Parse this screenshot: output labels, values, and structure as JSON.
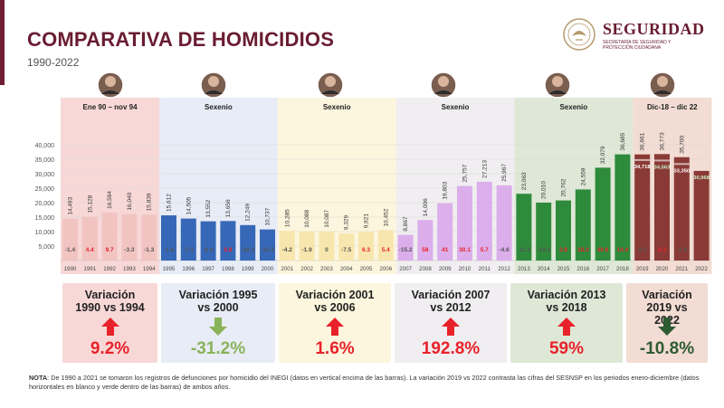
{
  "title": "COMPARATIVA DE HOMICIDIOS",
  "subtitle": "1990-2022",
  "logo": {
    "name": "SEGURIDAD",
    "sub": "SECRETARÍA DE SEGURIDAD Y PROTECCIÓN CIUDADANA"
  },
  "colors": {
    "brand": "#691c32",
    "up": "#e8222a",
    "down_light": "#8ab35a",
    "down_dark": "#2e5b32"
  },
  "periods": [
    {
      "label": "Ene 90 – nov 94",
      "bg": "#f8d8d7",
      "bar": "#f1c4c2"
    },
    {
      "label": "Sexenio",
      "bg": "#e7ecf6",
      "bar": "#3668b7"
    },
    {
      "label": "Sexenio",
      "bg": "#fdf6de",
      "bar": "#f7e6ad"
    },
    {
      "label": "Sexenio",
      "bg": "#f0eef0",
      "bar": "#dcaeeb"
    },
    {
      "label": "Sexenio",
      "bg": "#dfe8d7",
      "bar": "#2e8b3c"
    },
    {
      "label": "Dic-18 – dic 22",
      "bg": "#f2dcd3",
      "bar": "#8a3a36"
    }
  ],
  "chart_data": {
    "type": "bar",
    "title": "Comparativa de homicidios 1990-2022",
    "ylim": [
      0,
      40000
    ],
    "yticks": [
      "40,000",
      "35,000",
      "30,000",
      "25,000",
      "20,000",
      "15,000",
      "10,000",
      "5,000"
    ],
    "categories": [
      "1990",
      "1991",
      "1992",
      "1993",
      "1994",
      "1995",
      "1996",
      "1997",
      "1998",
      "1999",
      "2000",
      "2001",
      "2002",
      "2003",
      "2004",
      "2005",
      "2006",
      "2007",
      "2008",
      "2009",
      "2010",
      "2011",
      "2012",
      "2013",
      "2014",
      "2015",
      "2016",
      "2017",
      "2018",
      "2019",
      "2020",
      "2021",
      "2022"
    ],
    "values": [
      14493,
      15128,
      16594,
      16040,
      15839,
      15612,
      14505,
      13552,
      13656,
      12249,
      10737,
      10285,
      10088,
      10087,
      9329,
      9921,
      10452,
      8867,
      14006,
      19803,
      25757,
      27213,
      25967,
      23063,
      20010,
      20762,
      24559,
      32079,
      36685,
      36661,
      36773,
      35700,
      null
    ],
    "value_labels": [
      "14,493",
      "15,128",
      "16,594",
      "16,040",
      "15,839",
      "15,612",
      "14,505",
      "13,552",
      "13,656",
      "12,249",
      "10,737",
      "10,285",
      "10,088",
      "10,087",
      "9,329",
      "9,921",
      "10,452",
      "8,867",
      "14,006",
      "19,803",
      "25,757",
      "27,213",
      "25,967",
      "23,063",
      "20,010",
      "20,762",
      "24,559",
      "32,079",
      "36,685",
      "36,661",
      "36,773",
      "35,700",
      ""
    ],
    "period_index": [
      0,
      0,
      0,
      0,
      0,
      1,
      1,
      1,
      1,
      1,
      1,
      2,
      2,
      2,
      2,
      2,
      2,
      3,
      3,
      3,
      3,
      3,
      3,
      4,
      4,
      4,
      4,
      4,
      4,
      5,
      5,
      5,
      5
    ],
    "changes": [
      "-1.4",
      "4.4",
      "9.7",
      "-3.3",
      "-1.3",
      "-1.4",
      "-7.1",
      "-6.6",
      "0.8",
      "-10.3",
      "-12.3",
      "-4.2",
      "-1.9",
      "0",
      "-7.5",
      "6.3",
      "5.4",
      "-15.2",
      "58",
      "41",
      "30.1",
      "5.7",
      "-4.6",
      "-11.2",
      "-13.2",
      "3.8",
      "18.3",
      "30.6",
      "14.4",
      "-0.1",
      "0.3",
      "-2.9",
      ""
    ],
    "sesnsp": {
      "categories": [
        "2019",
        "2020",
        "2021",
        "2022"
      ],
      "values": [
        34718,
        34563,
        33350,
        30968
      ],
      "labels": [
        "34,718",
        "34,563",
        "33,350",
        "30,968"
      ]
    }
  },
  "variations": [
    {
      "label": "Variación 1990 vs 1994",
      "value": "9.2%",
      "direction": "up"
    },
    {
      "label": "Variación 1995 vs 2000",
      "value": "-31.2%",
      "direction": "down_light"
    },
    {
      "label": "Variación 2001 vs 2006",
      "value": "1.6%",
      "direction": "up"
    },
    {
      "label": "Variación 2007 vs 2012",
      "value": "192.8%",
      "direction": "up"
    },
    {
      "label": "Variación 2013 vs 2018",
      "value": "59%",
      "direction": "up"
    },
    {
      "label": "Variación 2019 vs 2022",
      "value": "-10.8%",
      "direction": "down_dark"
    }
  ],
  "note": {
    "lead": "NOTA",
    "text": ": De 1990 a 2021 se tomaron los registros de defunciones por homicidio del INEGI (datos en vertical encima de las barras). La variación 2019 vs 2022 contrasta las cifras del SESNSP en los periodos enero-diciembre (datos horizontales en blanco y verde dentro de las barras) de ambos años."
  }
}
